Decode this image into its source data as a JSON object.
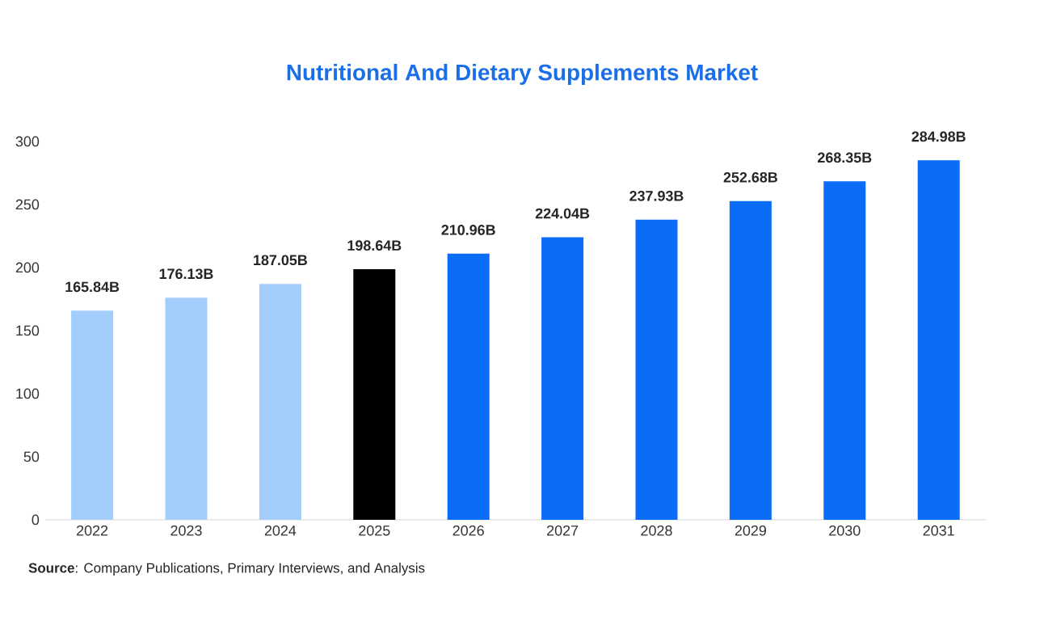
{
  "chart_data": {
    "type": "bar",
    "title": "Nutritional And Dietary Supplements Market",
    "categories": [
      "2022",
      "2023",
      "2024",
      "2025",
      "2026",
      "2027",
      "2028",
      "2029",
      "2030",
      "2031"
    ],
    "values": [
      165.84,
      176.13,
      187.05,
      198.64,
      210.96,
      224.04,
      237.93,
      252.68,
      268.35,
      284.98
    ],
    "colors": [
      "#a3cdfb",
      "#a3cdfb",
      "#a3cdfb",
      "#000000",
      "#0b6cf6",
      "#0b6cf6",
      "#0b6cf6",
      "#0b6cf6",
      "#0b6cf6",
      "#0b6cf6"
    ],
    "value_labels": [
      "165.84B",
      "176.13B",
      "187.05B",
      "198.64B",
      "210.96B",
      "224.04B",
      "237.93B",
      "252.68B",
      "268.35B",
      "284.98B"
    ],
    "ylim": [
      0,
      300
    ],
    "yticks": [
      0,
      50,
      100,
      150,
      200,
      250,
      300
    ],
    "annotations": [
      "**Source**: Company Publications, Primary Interviews, and Analysis"
    ]
  }
}
